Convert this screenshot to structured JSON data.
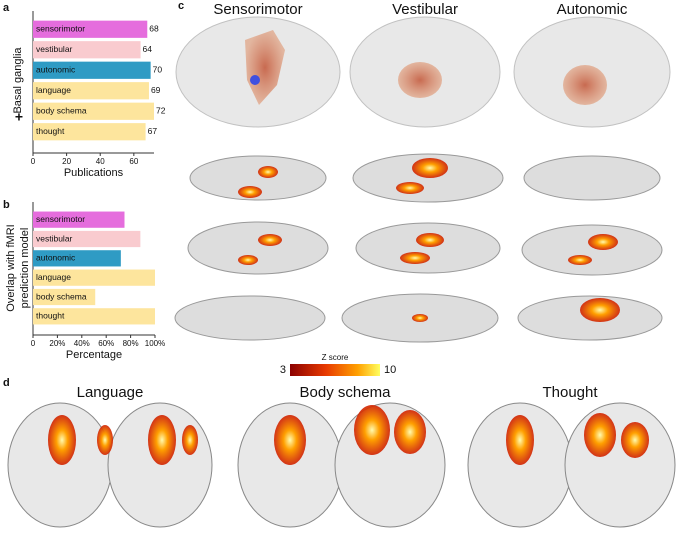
{
  "chart_data": [
    {
      "type": "hbar",
      "panel": "a",
      "ylabel": [
        "Basal ganglia"
      ],
      "marker": "+",
      "xlabel": "Publications",
      "categories": [
        "sensorimotor",
        "vestibular",
        "autonomic",
        "language",
        "body schema",
        "thought"
      ],
      "values": [
        68,
        64,
        70,
        69,
        72,
        67
      ],
      "colors": [
        "#e56ddd",
        "#f9cbcf",
        "#2f9bc4",
        "#fde59d",
        "#fde59d",
        "#fde59d"
      ],
      "xlim": [
        0,
        72
      ],
      "xticks": [
        0,
        20,
        40,
        60
      ],
      "value_labels_shown": true
    },
    {
      "type": "hbar",
      "panel": "b",
      "ylabel": [
        "Overlap with fMRI",
        "prediction model"
      ],
      "xlabel": "Percentage",
      "categories": [
        "sensorimotor",
        "vestibular",
        "autonomic",
        "language",
        "body schema",
        "thought"
      ],
      "values": [
        75,
        88,
        72,
        100,
        51,
        100
      ],
      "colors": [
        "#e56ddd",
        "#f9cbcf",
        "#2f9bc4",
        "#fde59d",
        "#fde59d",
        "#fde59d"
      ],
      "xlim": [
        0,
        100
      ],
      "xticks": [
        0,
        {
          "value": 20,
          "label": "20%"
        },
        {
          "value": 40,
          "label": "40%"
        },
        {
          "value": 60,
          "label": "60%"
        },
        {
          "value": 80,
          "label": "80%"
        },
        {
          "value": 100,
          "label": "100%"
        }
      ],
      "value_labels_shown": false
    }
  ],
  "panel_c": {
    "label": "c",
    "headings": [
      "Sensorimotor",
      "Vestibular",
      "Autonomic"
    ]
  },
  "colorbar": {
    "title": "Z score",
    "min": 3,
    "max": 10
  },
  "panel_d": {
    "label": "d",
    "headings": [
      "Language",
      "Body schema",
      "Thought"
    ]
  }
}
